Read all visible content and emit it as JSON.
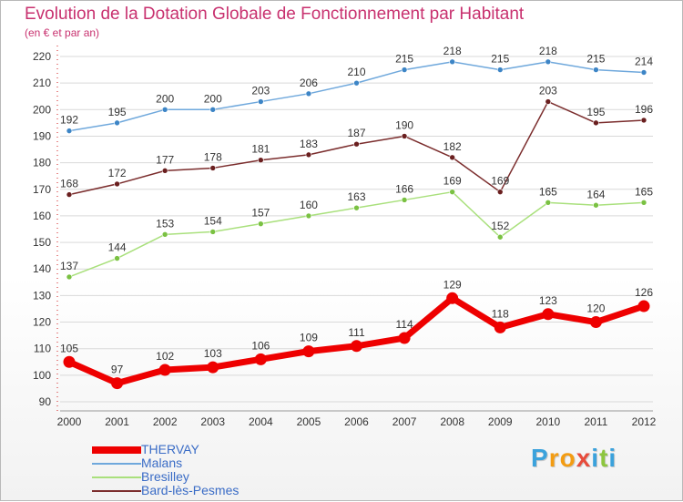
{
  "title": "Evolution de la Dotation Globale de Fonctionnement par Habitant",
  "subtitle": "(en € et par an)",
  "brand": {
    "letters": [
      "P",
      "r",
      "o",
      "x",
      "i",
      "t",
      "i"
    ],
    "colors": [
      "#3ba2dc",
      "#f39c12",
      "#f39c12",
      "#e74c3c",
      "#3ba2dc",
      "#8dc63f",
      "#3ba2dc"
    ]
  },
  "chart_data": {
    "type": "line",
    "title": "Evolution de la Dotation Globale de Fonctionnement par Habitant",
    "subtitle": "(en € et par an)",
    "xlabel": "",
    "ylabel": "",
    "ylim": [
      90,
      220
    ],
    "yticks": [
      90,
      100,
      110,
      120,
      130,
      140,
      150,
      160,
      170,
      180,
      190,
      200,
      210,
      220
    ],
    "grid": true,
    "legend_position": "bottom-left",
    "categories": [
      "2000",
      "2001",
      "2002",
      "2003",
      "2004",
      "2005",
      "2006",
      "2007",
      "2008",
      "2009",
      "2010",
      "2011",
      "2012"
    ],
    "series": [
      {
        "name": "THERVAY",
        "color": "#ee0000",
        "emphasis": true,
        "values": [
          105,
          97,
          102,
          103,
          106,
          109,
          111,
          114,
          129,
          118,
          123,
          120,
          126
        ]
      },
      {
        "name": "Malans",
        "color": "#6fa8dc",
        "marker_color": "#3d85c6",
        "emphasis": false,
        "values": [
          192,
          195,
          200,
          200,
          203,
          206,
          210,
          215,
          218,
          215,
          218,
          215,
          214
        ]
      },
      {
        "name": "Bresilley",
        "color": "#a9e07c",
        "marker_color": "#7ac142",
        "emphasis": false,
        "values": [
          137,
          144,
          153,
          154,
          157,
          160,
          163,
          166,
          169,
          152,
          165,
          164,
          165
        ]
      },
      {
        "name": "Bard-lès-Pesmes",
        "color": "#7b2d2d",
        "marker_color": "#6a1f1f",
        "emphasis": false,
        "values": [
          168,
          172,
          177,
          178,
          181,
          183,
          187,
          190,
          182,
          169,
          203,
          195,
          196
        ]
      }
    ]
  }
}
